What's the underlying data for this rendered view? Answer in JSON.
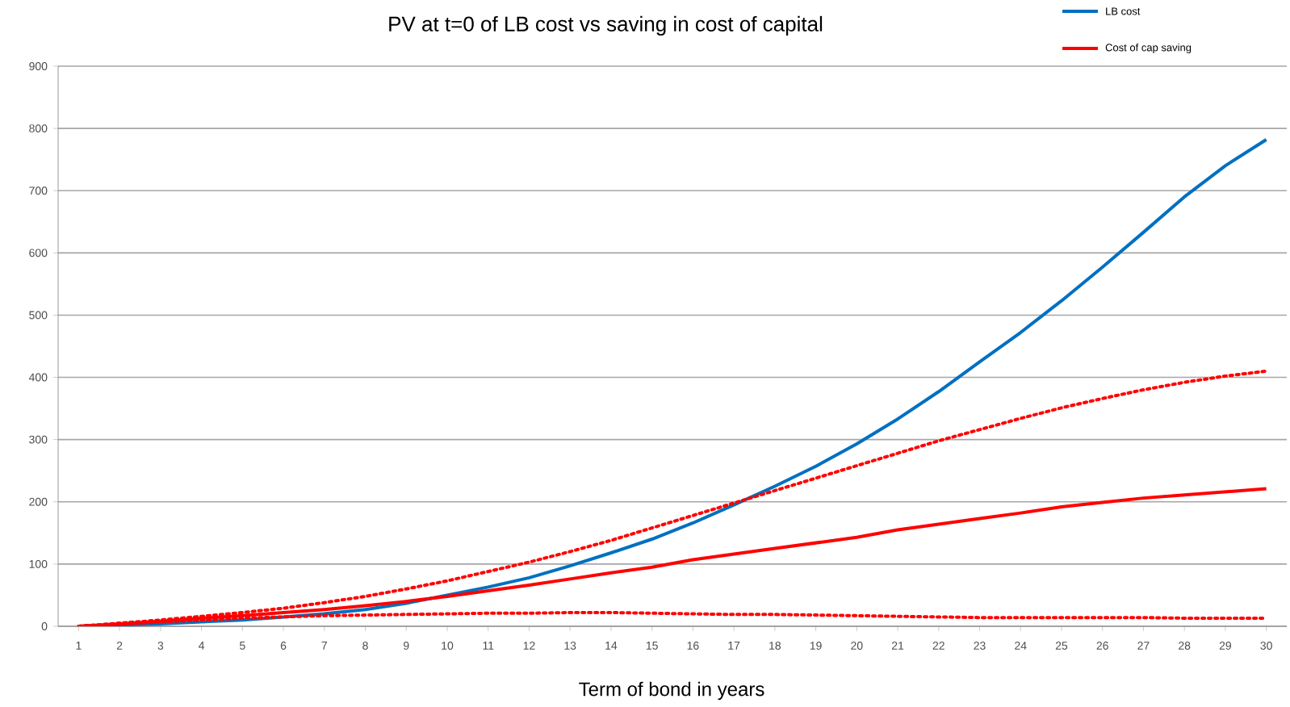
{
  "chart_data": {
    "type": "line",
    "title": "PV at t=0 of LB cost vs saving in cost of capital",
    "xlabel": "Term of bond in years",
    "categories": [
      "1",
      "2",
      "3",
      "4",
      "5",
      "6",
      "7",
      "8",
      "9",
      "10",
      "11",
      "12",
      "13",
      "14",
      "15",
      "16",
      "17",
      "18",
      "19",
      "20",
      "21",
      "22",
      "23",
      "24",
      "25",
      "26",
      "27",
      "28",
      "29",
      "30"
    ],
    "series": [
      {
        "name": "LB  cost",
        "color": "#0070c0",
        "line_style": "solid",
        "values": [
          0,
          2,
          4,
          7,
          10,
          15,
          20,
          27,
          37,
          50,
          63,
          78,
          97,
          118,
          140,
          166,
          195,
          225,
          257,
          293,
          333,
          377,
          425,
          472,
          523,
          577,
          633,
          690,
          740,
          782
        ]
      },
      {
        "name": "Cost of cap saving",
        "color": "#ff0000",
        "line_style": "solid",
        "values": [
          0,
          4,
          8,
          13,
          17,
          22,
          27,
          33,
          40,
          48,
          57,
          66,
          76,
          86,
          95,
          107,
          116,
          125,
          134,
          143,
          155,
          164,
          173,
          182,
          192,
          199,
          206,
          211,
          216,
          221
        ]
      },
      {
        "color": "#ff0000",
        "line_style": "dotted",
        "values": [
          0,
          5,
          10,
          16,
          22,
          29,
          38,
          48,
          60,
          73,
          88,
          103,
          120,
          138,
          158,
          178,
          198,
          218,
          238,
          258,
          278,
          298,
          316,
          334,
          351,
          366,
          380,
          392,
          402,
          410
        ]
      },
      {
        "color": "#ff0000",
        "line_style": "dotted",
        "values": [
          0,
          3,
          7,
          10,
          13,
          15,
          17,
          18,
          19,
          20,
          21,
          21,
          22,
          22,
          21,
          20,
          19,
          19,
          18,
          17,
          16,
          15,
          14,
          14,
          14,
          14,
          14,
          13,
          13,
          13
        ]
      }
    ],
    "ylim": [
      0,
      900
    ],
    "yticks": [
      0,
      100,
      200,
      300,
      400,
      500,
      600,
      700,
      800,
      900
    ],
    "grid": "y",
    "legend": "top right",
    "marker": "none"
  }
}
